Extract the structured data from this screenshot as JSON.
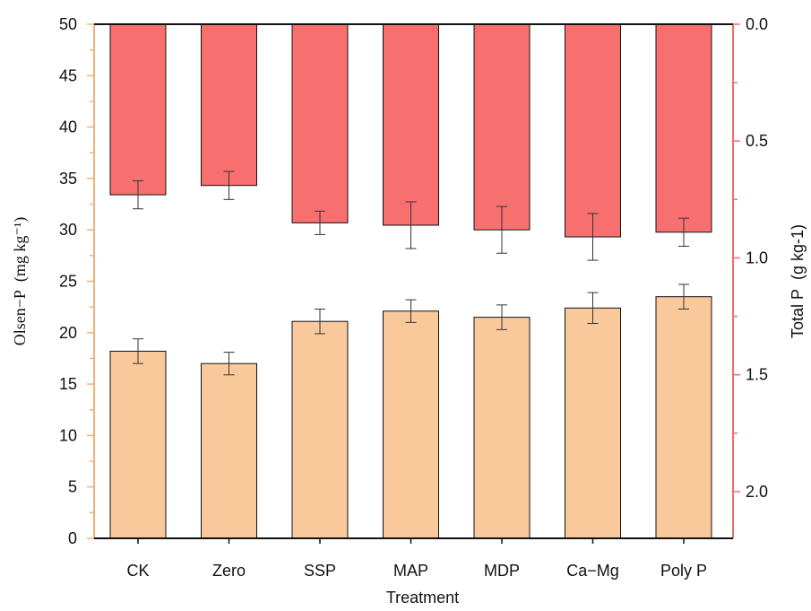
{
  "chart_data": {
    "type": "bar",
    "categories": [
      "CK",
      "Zero",
      "SSP",
      "MAP",
      "MDP",
      "Ca−Mg",
      "Poly P"
    ],
    "xlabel": "Treatment",
    "left_axis": {
      "label": "Olsen−P  (mg kg⁻¹)",
      "ylim": [
        0,
        50
      ],
      "major_ticks": [
        0,
        5,
        10,
        15,
        20,
        25,
        30,
        35,
        40,
        45,
        50
      ],
      "color": "#f2b27a"
    },
    "right_axis": {
      "label": "Total P  (g kg-1)",
      "ylim": [
        0,
        2.2
      ],
      "inverted": true,
      "major_ticks": [
        0.0,
        0.5,
        1.0,
        1.5,
        2.0
      ],
      "tick_labels": [
        "0.0",
        "0.5",
        "1.0",
        "1.5",
        "2.0"
      ],
      "color": "#f36b6b"
    },
    "series": [
      {
        "axis": "left",
        "color": "#f9c89b",
        "values": [
          18.2,
          17.0,
          21.1,
          22.1,
          21.5,
          22.4,
          23.5
        ],
        "errors": [
          1.2,
          1.1,
          1.2,
          1.1,
          1.2,
          1.5,
          1.2
        ]
      },
      {
        "axis": "right",
        "color": "#f86f70",
        "values": [
          0.73,
          0.69,
          0.85,
          0.86,
          0.88,
          0.91,
          0.89
        ],
        "errors": [
          0.06,
          0.06,
          0.05,
          0.1,
          0.1,
          0.1,
          0.06
        ]
      }
    ],
    "grid": false
  }
}
